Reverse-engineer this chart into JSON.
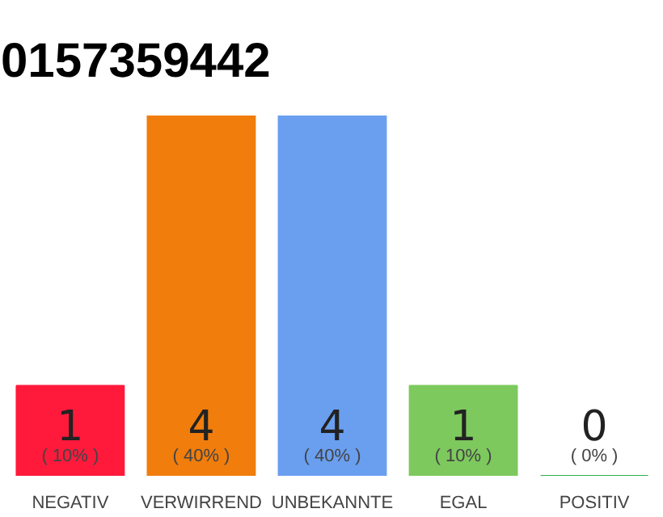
{
  "chart_data": {
    "type": "bar",
    "title": "0157359442",
    "categories": [
      "NEGATIV",
      "VERWIRREND",
      "UNBEKANNTE",
      "EGAL",
      "POSITIV"
    ],
    "values": [
      1,
      4,
      4,
      1,
      0
    ],
    "colors": [
      "#ff1a3c",
      "#f07d0c",
      "#6a9ff0",
      "#7dc95e",
      "#2db04b"
    ],
    "value_labels": [
      "1",
      "4",
      "4",
      "1",
      "0"
    ],
    "annotations": [
      "( 10% )",
      "( 40% )",
      "( 40% )",
      "( 10% )",
      "( 0% )"
    ],
    "tick_labels": "x"
  }
}
